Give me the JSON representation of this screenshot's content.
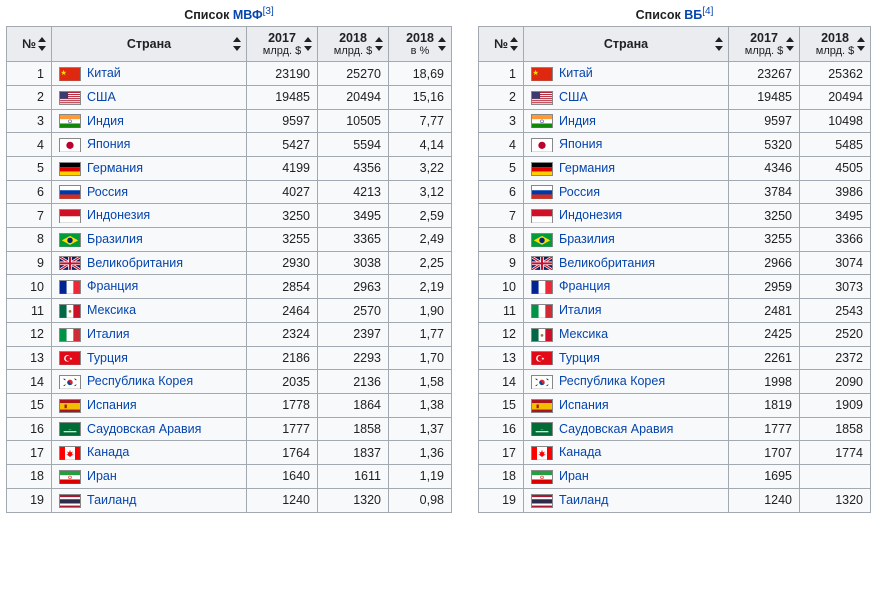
{
  "headers": {
    "rank": "№",
    "country": "Страна",
    "y2017_top": "2017",
    "y2018_top": "2018",
    "unit": "млрд. $",
    "pct_top": "2018",
    "pct_unit": "в %"
  },
  "imf": {
    "title_prefix": "Список ",
    "title_link": "МВФ",
    "title_ref": "[3]",
    "rows": [
      {
        "rank": "1",
        "flag": "cn",
        "name": "Китай",
        "y17": "23190",
        "y18": "25270",
        "pct": "18,69"
      },
      {
        "rank": "2",
        "flag": "us",
        "name": "США",
        "y17": "19485",
        "y18": "20494",
        "pct": "15,16"
      },
      {
        "rank": "3",
        "flag": "in",
        "name": "Индия",
        "y17": "9597",
        "y18": "10505",
        "pct": "7,77"
      },
      {
        "rank": "4",
        "flag": "jp",
        "name": "Япония",
        "y17": "5427",
        "y18": "5594",
        "pct": "4,14"
      },
      {
        "rank": "5",
        "flag": "de",
        "name": "Германия",
        "y17": "4199",
        "y18": "4356",
        "pct": "3,22"
      },
      {
        "rank": "6",
        "flag": "ru",
        "name": "Россия",
        "y17": "4027",
        "y18": "4213",
        "pct": "3,12"
      },
      {
        "rank": "7",
        "flag": "id",
        "name": "Индонезия",
        "y17": "3250",
        "y18": "3495",
        "pct": "2,59"
      },
      {
        "rank": "8",
        "flag": "br",
        "name": "Бразилия",
        "y17": "3255",
        "y18": "3365",
        "pct": "2,49"
      },
      {
        "rank": "9",
        "flag": "gb",
        "name": "Великобритания",
        "y17": "2930",
        "y18": "3038",
        "pct": "2,25"
      },
      {
        "rank": "10",
        "flag": "fr",
        "name": "Франция",
        "y17": "2854",
        "y18": "2963",
        "pct": "2,19"
      },
      {
        "rank": "11",
        "flag": "mx",
        "name": "Мексика",
        "y17": "2464",
        "y18": "2570",
        "pct": "1,90"
      },
      {
        "rank": "12",
        "flag": "it",
        "name": "Италия",
        "y17": "2324",
        "y18": "2397",
        "pct": "1,77"
      },
      {
        "rank": "13",
        "flag": "tr",
        "name": "Турция",
        "y17": "2186",
        "y18": "2293",
        "pct": "1,70"
      },
      {
        "rank": "14",
        "flag": "kr",
        "name": "Республика Корея",
        "y17": "2035",
        "y18": "2136",
        "pct": "1,58"
      },
      {
        "rank": "15",
        "flag": "es",
        "name": "Испания",
        "y17": "1778",
        "y18": "1864",
        "pct": "1,38"
      },
      {
        "rank": "16",
        "flag": "sa",
        "name": "Саудовская Аравия",
        "y17": "1777",
        "y18": "1858",
        "pct": "1,37"
      },
      {
        "rank": "17",
        "flag": "ca",
        "name": "Канада",
        "y17": "1764",
        "y18": "1837",
        "pct": "1,36"
      },
      {
        "rank": "18",
        "flag": "ir",
        "name": "Иран",
        "y17": "1640",
        "y18": "1611",
        "pct": "1,19"
      },
      {
        "rank": "19",
        "flag": "th",
        "name": "Таиланд",
        "y17": "1240",
        "y18": "1320",
        "pct": "0,98"
      }
    ]
  },
  "wb": {
    "title_prefix": "Список ",
    "title_link": "ВБ",
    "title_ref": "[4]",
    "rows": [
      {
        "rank": "1",
        "flag": "cn",
        "name": "Китай",
        "y17": "23267",
        "y18": "25362"
      },
      {
        "rank": "2",
        "flag": "us",
        "name": "США",
        "y17": "19485",
        "y18": "20494"
      },
      {
        "rank": "3",
        "flag": "in",
        "name": "Индия",
        "y17": "9597",
        "y18": "10498"
      },
      {
        "rank": "4",
        "flag": "jp",
        "name": "Япония",
        "y17": "5320",
        "y18": "5485"
      },
      {
        "rank": "5",
        "flag": "de",
        "name": "Германия",
        "y17": "4346",
        "y18": "4505"
      },
      {
        "rank": "6",
        "flag": "ru",
        "name": "Россия",
        "y17": "3784",
        "y18": "3986"
      },
      {
        "rank": "7",
        "flag": "id",
        "name": "Индонезия",
        "y17": "3250",
        "y18": "3495"
      },
      {
        "rank": "8",
        "flag": "br",
        "name": "Бразилия",
        "y17": "3255",
        "y18": "3366"
      },
      {
        "rank": "9",
        "flag": "gb",
        "name": "Великобритания",
        "y17": "2966",
        "y18": "3074"
      },
      {
        "rank": "10",
        "flag": "fr",
        "name": "Франция",
        "y17": "2959",
        "y18": "3073"
      },
      {
        "rank": "11",
        "flag": "it",
        "name": "Италия",
        "y17": "2481",
        "y18": "2543"
      },
      {
        "rank": "12",
        "flag": "mx",
        "name": "Мексика",
        "y17": "2425",
        "y18": "2520"
      },
      {
        "rank": "13",
        "flag": "tr",
        "name": "Турция",
        "y17": "2261",
        "y18": "2372"
      },
      {
        "rank": "14",
        "flag": "kr",
        "name": "Республика Корея",
        "y17": "1998",
        "y18": "2090"
      },
      {
        "rank": "15",
        "flag": "es",
        "name": "Испания",
        "y17": "1819",
        "y18": "1909"
      },
      {
        "rank": "16",
        "flag": "sa",
        "name": "Саудовская Аравия",
        "y17": "1777",
        "y18": "1858"
      },
      {
        "rank": "17",
        "flag": "ca",
        "name": "Канада",
        "y17": "1707",
        "y18": "1774"
      },
      {
        "rank": "18",
        "flag": "ir",
        "name": "Иран",
        "y17": "1695",
        "y18": ""
      },
      {
        "rank": "19",
        "flag": "th",
        "name": "Таиланд",
        "y17": "1240",
        "y18": "1320"
      }
    ]
  },
  "flags": {
    "cn": "<svg viewBox='0 0 22 14'><rect width='22' height='14' fill='#de2910'/><polygon fill='#ffde00' points='4,2 4.8,4.2 7,4.2 5.2,5.6 6,7.8 4,6.4 2,7.8 2.8,5.6 1,4.2 3.2,4.2'/></svg>",
    "us": "<svg viewBox='0 0 22 14'><rect width='22' height='14' fill='#b22234'/><rect y='1.08' width='22' height='1.08' fill='#fff'/><rect y='3.23' width='22' height='1.08' fill='#fff'/><rect y='5.38' width='22' height='1.08' fill='#fff'/><rect y='7.54' width='22' height='1.08' fill='#fff'/><rect y='9.69' width='22' height='1.08' fill='#fff'/><rect y='11.85' width='22' height='1.08' fill='#fff'/><rect width='9' height='7.5' fill='#3c3b6e'/></svg>",
    "in": "<svg viewBox='0 0 22 14'><rect width='22' height='4.67' fill='#ff9933'/><rect y='4.67' width='22' height='4.67' fill='#fff'/><rect y='9.33' width='22' height='4.67' fill='#138808'/><circle cx='11' cy='7' r='1.7' fill='none' stroke='#000080' stroke-width='0.5'/></svg>",
    "jp": "<svg viewBox='0 0 22 14'><rect width='22' height='14' fill='#fff'/><circle cx='11' cy='7' r='4' fill='#bc002d'/></svg>",
    "de": "<svg viewBox='0 0 22 14'><rect width='22' height='4.67' fill='#000'/><rect y='4.67' width='22' height='4.67' fill='#dd0000'/><rect y='9.33' width='22' height='4.67' fill='#ffce00'/></svg>",
    "ru": "<svg viewBox='0 0 22 14'><rect width='22' height='4.67' fill='#fff'/><rect y='4.67' width='22' height='4.67' fill='#0039a6'/><rect y='9.33' width='22' height='4.67' fill='#d52b1e'/></svg>",
    "id": "<svg viewBox='0 0 22 14'><rect width='22' height='7' fill='#ce1126'/><rect y='7' width='22' height='7' fill='#fff'/></svg>",
    "br": "<svg viewBox='0 0 22 14'><rect width='22' height='14' fill='#009b3a'/><polygon points='11,2 20,7 11,12 2,7' fill='#fedf00'/><circle cx='11' cy='7' r='3' fill='#002776'/></svg>",
    "gb": "<svg viewBox='0 0 22 14'><rect width='22' height='14' fill='#012169'/><path d='M0 0L22 14M22 0L0 14' stroke='#fff' stroke-width='3'/><path d='M0 0L22 14M22 0L0 14' stroke='#c8102e' stroke-width='1.4'/><path d='M11 0V14M0 7H22' stroke='#fff' stroke-width='4'/><path d='M11 0V14M0 7H22' stroke='#c8102e' stroke-width='2.2'/></svg>",
    "fr": "<svg viewBox='0 0 22 14'><rect width='7.33' height='14' fill='#002395'/><rect x='7.33' width='7.33' height='14' fill='#fff'/><rect x='14.67' width='7.33' height='14' fill='#ed2939'/></svg>",
    "mx": "<svg viewBox='0 0 22 14'><rect width='7.33' height='14' fill='#006847'/><rect x='7.33' width='7.33' height='14' fill='#fff'/><rect x='14.67' width='7.33' height='14' fill='#ce1126'/><circle cx='11' cy='7' r='1.5' fill='#9c7c3b'/></svg>",
    "it": "<svg viewBox='0 0 22 14'><rect width='7.33' height='14' fill='#009246'/><rect x='7.33' width='7.33' height='14' fill='#fff'/><rect x='14.67' width='7.33' height='14' fill='#ce2b37'/></svg>",
    "tr": "<svg viewBox='0 0 22 14'><rect width='22' height='14' fill='#e30a17'/><circle cx='8' cy='7' r='3.5' fill='#fff'/><circle cx='9' cy='7' r='2.9' fill='#e30a17'/><polygon fill='#fff' points='12,5.5 12.4,6.7 13.7,6.7 12.7,7.5 13,8.7 12,8 11,8.7 11.3,7.5 10.3,6.7 11.6,6.7'/></svg>",
    "kr": "<svg viewBox='0 0 22 14'><rect width='22' height='14' fill='#fff'/><circle cx='11' cy='7' r='3' fill='#cd2e3a'/><path d='M8 7a3 3 0 0 0 6 0a1.5 1.5 0 0 1-3 0a1.5 1.5 0 0 0-3 0' fill='#0047a0'/><g stroke='#000' stroke-width='0.8'><line x1='4' y1='3' x2='6' y2='4.5'/><line x1='16' y1='3' x2='18' y2='4.5'/><line x1='4' y1='11' x2='6' y2='9.5'/><line x1='16' y1='11' x2='18' y2='9.5'/></g></svg>",
    "es": "<svg viewBox='0 0 22 14'><rect width='22' height='3.5' fill='#aa151b'/><rect y='3.5' width='22' height='7' fill='#f1bf00'/><rect y='10.5' width='22' height='3.5' fill='#aa151b'/><rect x='5' y='5' width='2.5' height='4' fill='#aa151b'/></svg>",
    "sa": "<svg viewBox='0 0 22 14'><rect width='22' height='14' fill='#006c35'/><rect x='4' y='9' width='14' height='1.2' fill='#fff'/><text x='11' y='7' font-size='3' fill='#fff' text-anchor='middle'>ـــ</text></svg>",
    "ca": "<svg viewBox='0 0 22 14'><rect width='5.5' height='14' fill='#ff0000'/><rect x='5.5' width='11' height='14' fill='#fff'/><rect x='16.5' width='5.5' height='14' fill='#ff0000'/><polygon fill='#ff0000' points='11,3 12,6 14,5 13,8 15,8 11,11 7,8 9,8 8,5 10,6'/></svg>",
    "ir": "<svg viewBox='0 0 22 14'><rect width='22' height='4.67' fill='#239f40'/><rect y='4.67' width='22' height='4.67' fill='#fff'/><rect y='9.33' width='22' height='4.67' fill='#da0000'/><circle cx='11' cy='7' r='1.5' fill='none' stroke='#da0000' stroke-width='0.6'/></svg>",
    "th": "<svg viewBox='0 0 22 14'><rect width='22' height='14' fill='#a51931'/><rect y='2.33' width='22' height='9.33' fill='#fff'/><rect y='4.67' width='22' height='4.67' fill='#2d2a4a'/></svg>"
  }
}
